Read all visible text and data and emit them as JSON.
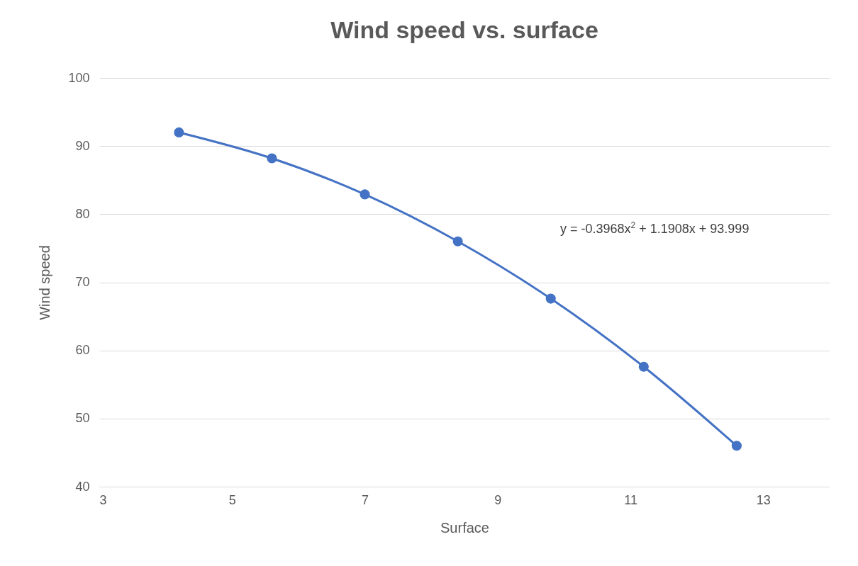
{
  "chart_data": {
    "type": "line",
    "title": "Wind speed vs. surface",
    "xlabel": "Surface",
    "ylabel": "Wind speed",
    "x": [
      4.2,
      5.6,
      7.0,
      8.4,
      9.8,
      11.2,
      12.6
    ],
    "series": [
      {
        "color": "#4472c4",
        "values": [
          92.0,
          88.2,
          82.9,
          76.0,
          67.6,
          57.6,
          46.0
        ]
      }
    ],
    "xlim": [
      3,
      14
    ],
    "xticks": [
      3,
      5,
      7,
      9,
      11,
      13
    ],
    "ylim": [
      40,
      100
    ],
    "yticks": [
      40,
      50,
      60,
      70,
      80,
      90,
      100
    ],
    "grid": "y",
    "marker": "circle",
    "line_style": "solid",
    "annotations": [
      "y = -0.3968x$^{2}$ + 1.1908x + 93.999"
    ]
  }
}
